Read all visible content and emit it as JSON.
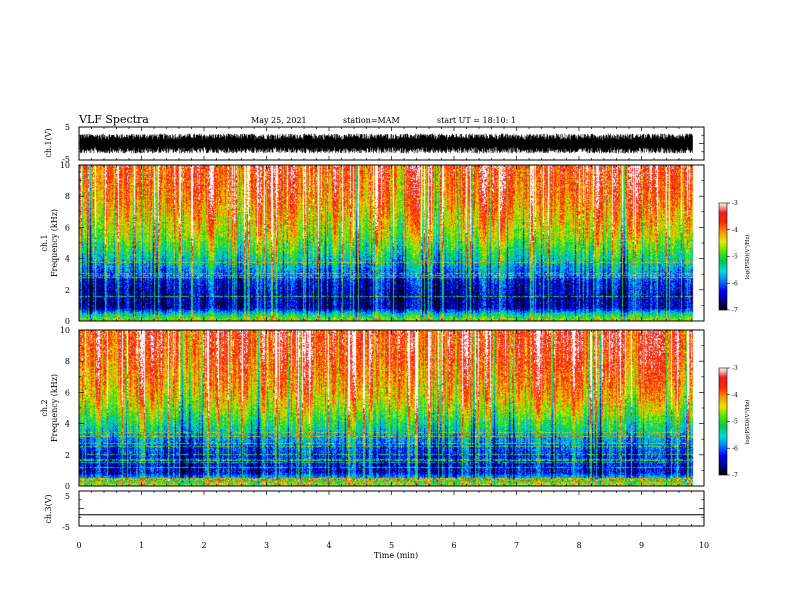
{
  "header": {
    "title": "VLF Spectra",
    "date": "May 25, 2021",
    "station": "station=MAM",
    "start_ut": "start UT = 18:10: 1"
  },
  "colors": {
    "axis": "#000000",
    "colormap": [
      "#000000",
      "#00008c",
      "#0000ff",
      "#0080ff",
      "#00dcdc",
      "#00c850",
      "#50e600",
      "#e6e600",
      "#ff9600",
      "#ff2800",
      "#e61e1e",
      "#ffffff"
    ]
  },
  "chart_data": [
    {
      "type": "line",
      "name": "ch1-waveform",
      "ylabel": "ch.1(V)",
      "ylim": [
        -5,
        5
      ],
      "yticks": [
        "5",
        "-5"
      ],
      "xlim": [
        0,
        10
      ],
      "description_of_signal": "dense noisy waveform between about -3 and +3 V",
      "amplitude_range": [
        -3,
        3
      ]
    },
    {
      "type": "heatmap",
      "name": "ch1-spectrogram",
      "ylabel": "ch.1\nFrequency (kHz)",
      "ylim": [
        0,
        10
      ],
      "yticks": [
        "0",
        "2",
        "4",
        "6",
        "8",
        "10"
      ],
      "xlim": [
        0,
        10
      ],
      "data_end_min": 9.82,
      "profile": {
        "freq_khz": [
          0,
          0.4,
          0.8,
          1.5,
          2.5,
          3.5,
          4.5,
          5.5,
          6.5,
          7.5,
          8.5,
          10
        ],
        "log_psd": [
          -4.6,
          -5.4,
          -6.5,
          -6.5,
          -6.3,
          -5.7,
          -5.1,
          -4.6,
          -4.3,
          -4.0,
          -3.8,
          -3.6
        ]
      },
      "colorbar": {
        "label": "log(PSD)(V²/Hz)",
        "range": [
          -7,
          -3
        ],
        "ticks": [
          "-3",
          "-4",
          "-5",
          "-6",
          "-7"
        ]
      }
    },
    {
      "type": "heatmap",
      "name": "ch2-spectrogram",
      "ylabel": "ch.2\nFrequency (kHz)",
      "ylim": [
        0,
        10
      ],
      "yticks": [
        "0",
        "2",
        "4",
        "6",
        "8",
        "10"
      ],
      "xlim": [
        0,
        10
      ],
      "data_end_min": 9.82,
      "profile": {
        "freq_khz": [
          0,
          0.4,
          0.8,
          1.5,
          2.5,
          3.5,
          4.5,
          5.5,
          6.5,
          7.5,
          8.5,
          10
        ],
        "log_psd": [
          -4.4,
          -5.4,
          -6.3,
          -6.3,
          -6.0,
          -5.4,
          -4.8,
          -4.3,
          -4.0,
          -3.8,
          -3.6,
          -3.5
        ]
      },
      "colorbar": {
        "label": "log(PSD)(V²/Hz)",
        "range": [
          -7,
          -3
        ],
        "ticks": [
          "-3",
          "-4",
          "-5",
          "-6",
          "-7"
        ]
      }
    },
    {
      "type": "line",
      "name": "ch3-waveform",
      "ylabel": "ch.3(V)",
      "ylim": [
        -5,
        5
      ],
      "yticks": [
        "5",
        "0",
        "-5"
      ],
      "xlim": [
        0,
        10
      ],
      "constant_value": -1.8
    }
  ],
  "xaxis": {
    "label": "Time (min)",
    "ticks": [
      "0",
      "1",
      "2",
      "3",
      "4",
      "5",
      "6",
      "7",
      "8",
      "9",
      "10"
    ],
    "range": [
      0,
      10
    ]
  }
}
